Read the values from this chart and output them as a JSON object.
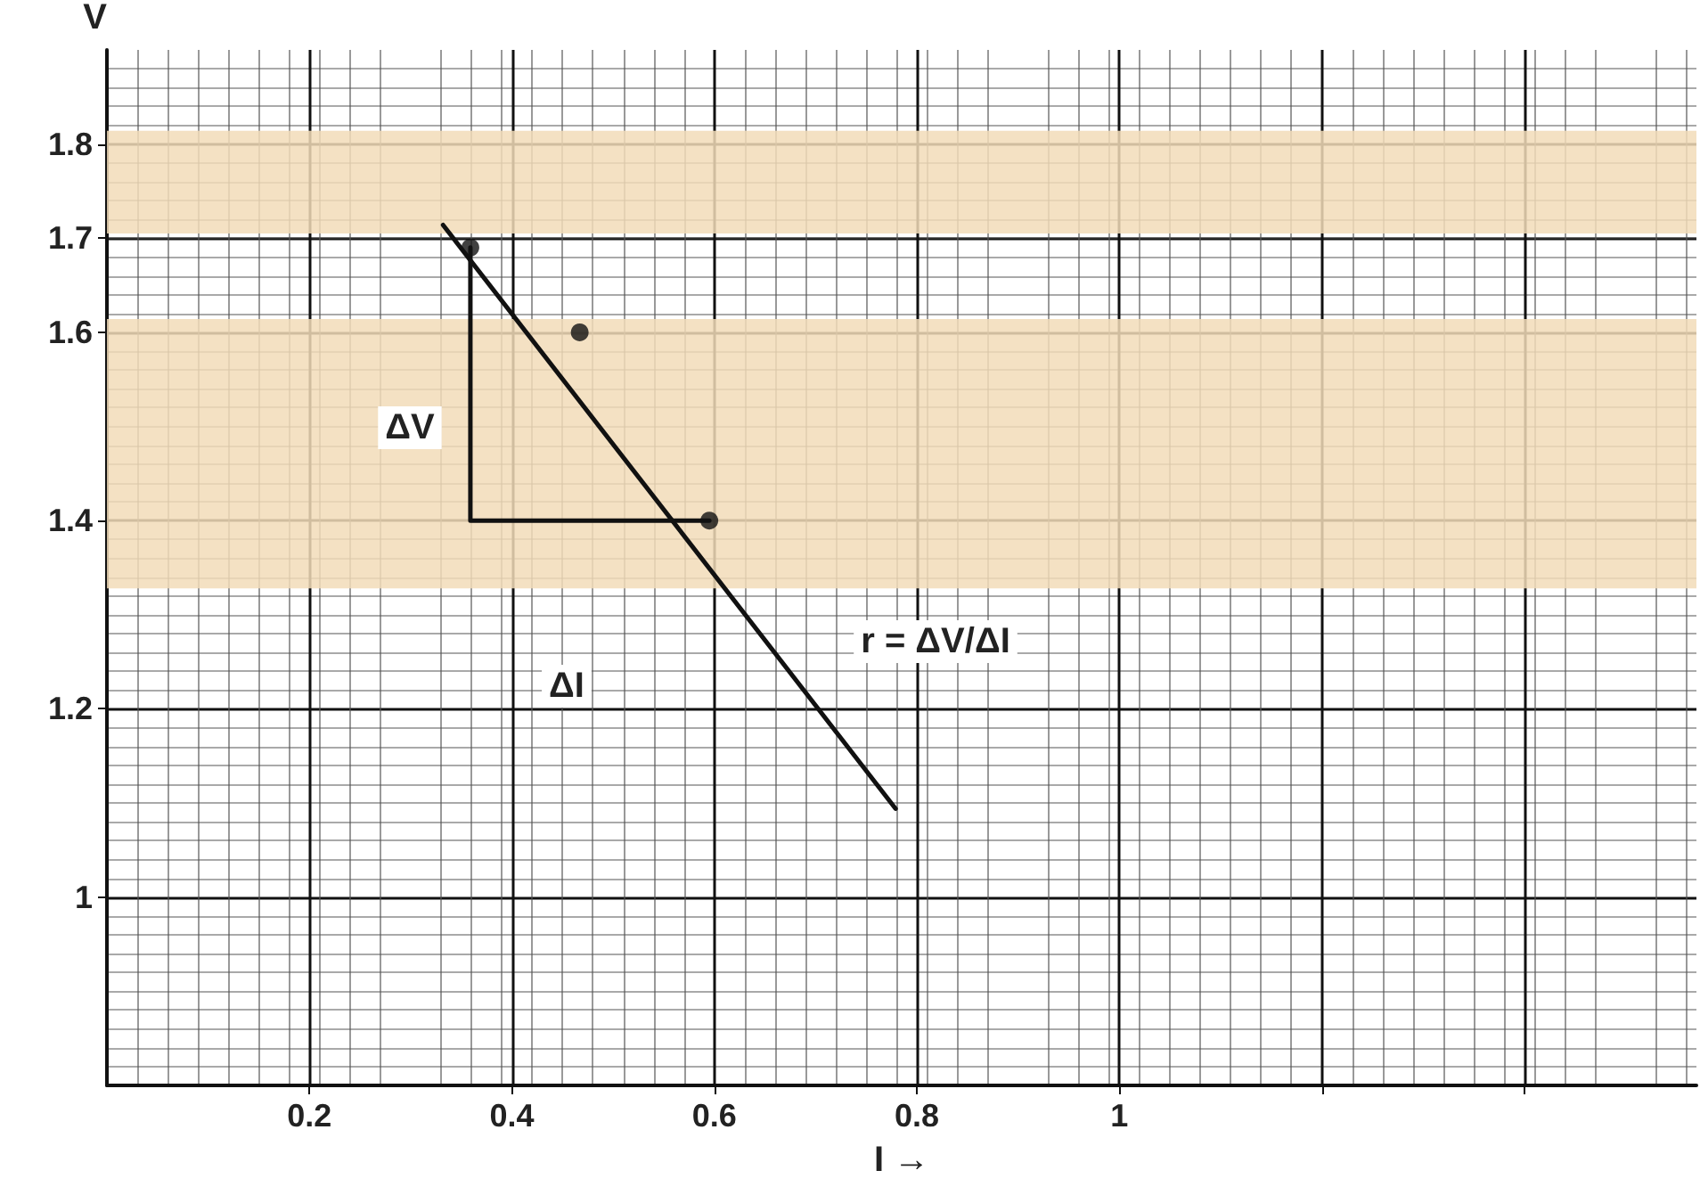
{
  "chart_data": {
    "type": "line",
    "ylabel": "V",
    "xlabel": "I →",
    "xlim": [
      0,
      1.57
    ],
    "xticks": [
      0.2,
      0.4,
      0.6,
      0.8,
      1,
      {
        "value": 1.2,
        "label": null
      },
      {
        "value": 1.4,
        "label": null
      }
    ],
    "ylim": [
      0.8,
      1.9
    ],
    "yticks": [
      1,
      1.2,
      1.4,
      1.6,
      1.7,
      1.8
    ],
    "grid": true,
    "series": [
      {
        "color": "#111111",
        "x": [
          0.332,
          0.779
        ],
        "values": [
          1.714,
          1.094
        ],
        "marker": "none",
        "line_style": "solid"
      },
      {
        "color": "#111111",
        "x": [
          0.359,
          0.359,
          0.595
        ],
        "values": [
          1.69,
          1.4,
          1.4
        ],
        "marker": "none",
        "line_style": "solid"
      },
      {
        "type": "scatter",
        "color": "#111111",
        "x": [
          0.359,
          0.467,
          0.595
        ],
        "values": [
          1.69,
          1.6,
          1.4
        ],
        "marker": "circle"
      }
    ],
    "bands": [
      {
        "axis": "y",
        "from": 1.705,
        "to": 1.814,
        "color": "#f2dcb8"
      },
      {
        "axis": "y",
        "from": 1.328,
        "to": 1.614,
        "color": "#f2dcb8"
      }
    ],
    "annotations": [
      "ΔV",
      "ΔI",
      "r = ΔV/ΔI"
    ]
  }
}
